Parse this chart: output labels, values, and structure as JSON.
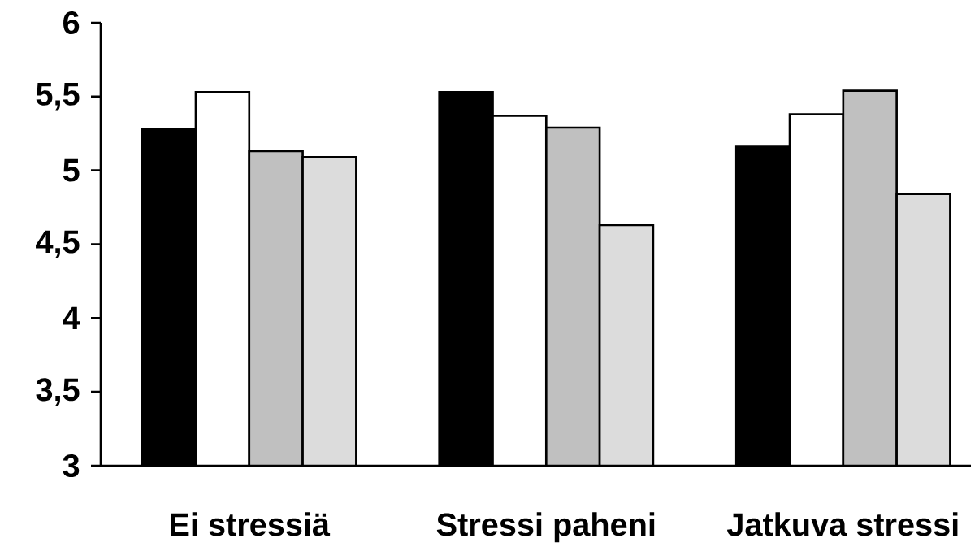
{
  "chart_data": {
    "type": "bar",
    "categories": [
      "Ei stressiä",
      "Stressi paheni",
      "Jatkuva stressi"
    ],
    "series": [
      {
        "color": "#000000",
        "values": [
          5.28,
          5.53,
          5.16
        ]
      },
      {
        "color": "#ffffff",
        "values": [
          5.53,
          5.37,
          5.38
        ]
      },
      {
        "color": "#c0c0c0",
        "values": [
          5.13,
          5.29,
          5.54
        ]
      },
      {
        "color": "#dcdcdc",
        "values": [
          5.09,
          4.63,
          4.84
        ]
      }
    ],
    "ylim": [
      3,
      6
    ],
    "yticks": [
      3,
      {
        "value": 3.5,
        "label": "3,5"
      },
      4,
      {
        "value": 4.5,
        "label": "4,5"
      },
      5,
      {
        "value": 5.5,
        "label": "5,5"
      },
      6
    ]
  }
}
